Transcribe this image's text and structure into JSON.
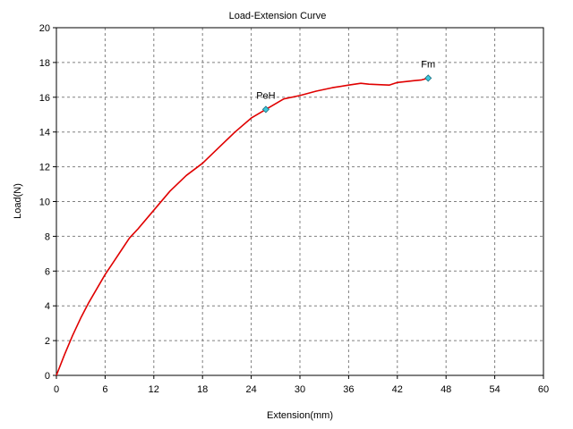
{
  "chart_data": {
    "type": "line",
    "title": "Load-Extension Curve",
    "xlabel": "Extension(mm)",
    "ylabel": "Load(N)",
    "xlim": [
      0,
      60
    ],
    "ylim": [
      0,
      20
    ],
    "xticks": [
      0,
      6,
      12,
      18,
      24,
      30,
      36,
      42,
      48,
      54,
      60
    ],
    "yticks": [
      0,
      2,
      4,
      6,
      8,
      10,
      12,
      14,
      16,
      18,
      20
    ],
    "grid": true,
    "series": [
      {
        "color": "#e00000",
        "x": [
          0,
          1,
          2,
          3,
          4,
          5,
          6,
          7,
          8,
          9,
          10,
          12,
          14,
          16,
          18,
          20,
          22,
          24,
          25.8,
          28,
          30,
          32,
          34,
          36,
          37.5,
          38.5,
          40,
          41,
          42,
          43,
          44,
          45,
          45.8
        ],
        "y": [
          0,
          1.2,
          2.3,
          3.3,
          4.2,
          5.0,
          5.8,
          6.5,
          7.2,
          7.9,
          8.4,
          9.5,
          10.6,
          11.5,
          12.2,
          13.1,
          14.0,
          14.8,
          15.3,
          15.9,
          16.1,
          16.35,
          16.55,
          16.7,
          16.8,
          16.75,
          16.72,
          16.7,
          16.85,
          16.9,
          16.95,
          17.0,
          17.1
        ]
      }
    ],
    "markers": [
      {
        "label": "PeH",
        "x": 25.8,
        "y": 15.3
      },
      {
        "label": "Fm",
        "x": 45.8,
        "y": 17.1
      }
    ]
  },
  "colors": {
    "curve": "#e00000",
    "marker_fill": "#3cc8dc",
    "grid": "#808080"
  }
}
